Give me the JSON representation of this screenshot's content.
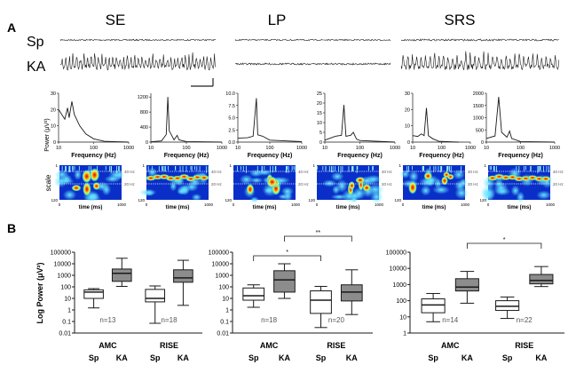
{
  "panel_a": {
    "label": "A",
    "columns": [
      "SE",
      "LP",
      "SRS"
    ],
    "rows": [
      "Sp",
      "KA"
    ],
    "spectra_ylabel": "Power (μV²)",
    "spectra_xlabel": "Frequency (Hz)",
    "wavelet_ylabel": "scale",
    "wavelet_xlabel": "time (ms)",
    "wavelet_xticks": [
      "0",
      "1000"
    ],
    "wavelet_yticks": [
      "1",
      "120"
    ],
    "wavelet_lines": [
      "40 Hz",
      "20 Hz"
    ]
  },
  "panel_b": {
    "label": "B",
    "ylabel": "Log Power (μV²)",
    "groups": [
      "AMC",
      "RISE"
    ],
    "conditions": [
      "Sp",
      "KA"
    ]
  },
  "colors": {
    "box_sp": "#ffffff",
    "box_ka": "#8c8c8c",
    "line": "#1a1a1a"
  },
  "chart_data": [
    {
      "type": "line",
      "column": "SE",
      "row": "Sp",
      "xscale": "log",
      "xlim": [
        10,
        1000
      ],
      "xticks": [
        "10",
        "100",
        "1000"
      ],
      "ylim": [
        0,
        30
      ],
      "yticks": [
        "0",
        "10",
        "20",
        "30"
      ],
      "x": [
        10,
        15,
        18,
        20,
        24,
        28,
        40,
        60,
        100,
        200,
        1000
      ],
      "y": [
        20,
        14,
        21,
        15,
        25,
        17,
        10,
        5,
        2,
        0.5,
        0
      ]
    },
    {
      "type": "line",
      "column": "SE",
      "row": "KA",
      "xscale": "log",
      "xlim": [
        10,
        1000
      ],
      "xticks": [
        "10",
        "100",
        "1000"
      ],
      "ylim": [
        0,
        1300
      ],
      "yticks": [
        "0",
        "400",
        "800",
        "1200"
      ],
      "x": [
        10,
        20,
        27,
        30,
        33,
        45,
        55,
        62,
        100,
        1000
      ],
      "y": [
        10,
        30,
        200,
        1200,
        300,
        60,
        180,
        60,
        15,
        0
      ]
    },
    {
      "type": "line",
      "column": "LP",
      "row": "Sp",
      "xscale": "log",
      "xlim": [
        10,
        1000
      ],
      "xticks": [
        "10",
        "100",
        "1000"
      ],
      "ylim": [
        0,
        10
      ],
      "yticks": [
        "0.0",
        "2.5",
        "5.0",
        "7.5",
        "10.0"
      ],
      "x": [
        10,
        20,
        30,
        38,
        42,
        60,
        100,
        1000
      ],
      "y": [
        0.8,
        0.9,
        1.2,
        9,
        1.5,
        1.2,
        0.4,
        0.1
      ]
    },
    {
      "type": "line",
      "column": "LP",
      "row": "KA",
      "xscale": "log",
      "xlim": [
        10,
        1000
      ],
      "xticks": [
        "10",
        "100",
        "1000"
      ],
      "ylim": [
        0,
        25
      ],
      "yticks": [
        "0",
        "5",
        "10",
        "15",
        "20",
        "25"
      ],
      "x": [
        10,
        20,
        30,
        35,
        40,
        55,
        65,
        80,
        100,
        1000
      ],
      "y": [
        1,
        3,
        3.5,
        19,
        3,
        3.5,
        5,
        1.5,
        0.8,
        0
      ]
    },
    {
      "type": "line",
      "column": "SRS",
      "row": "Sp",
      "xscale": "log",
      "xlim": [
        10,
        1000
      ],
      "xticks": [
        "10",
        "100",
        "1000"
      ],
      "ylim": [
        0,
        30
      ],
      "yticks": [
        "0",
        "10",
        "20",
        "30"
      ],
      "x": [
        10,
        15,
        20,
        25,
        30,
        35,
        50,
        80,
        400
      ],
      "y": [
        4,
        3.5,
        5,
        4,
        21,
        4,
        2,
        0.5,
        0
      ]
    },
    {
      "type": "line",
      "column": "SRS",
      "row": "KA",
      "xscale": "log",
      "xlim": [
        10,
        1000
      ],
      "xticks": [
        "10",
        "100",
        "1000"
      ],
      "ylim": [
        0,
        2000
      ],
      "yticks": [
        "0",
        "500",
        "1000",
        "1500",
        "2000"
      ],
      "x": [
        10,
        18,
        23,
        28,
        40,
        48,
        55,
        100,
        1000
      ],
      "y": [
        150,
        250,
        1850,
        400,
        200,
        450,
        150,
        20,
        0
      ]
    },
    {
      "type": "box",
      "yscale": "log",
      "ylim": [
        0.01,
        100000
      ],
      "yticks": [
        "0.01",
        "0.1",
        "1",
        "10",
        "100",
        "1000",
        "10000",
        "100000"
      ],
      "boxes": [
        {
          "group": "AMC",
          "cond": "Sp",
          "min": 1.5,
          "q1": 10,
          "median": 35,
          "q3": 55,
          "max": 70
        },
        {
          "group": "AMC",
          "cond": "KA",
          "min": 110,
          "q1": 300,
          "median": 1500,
          "q3": 3500,
          "max": 30000
        },
        {
          "group": "RISE",
          "cond": "Sp",
          "min": 0.07,
          "q1": 5,
          "median": 10,
          "q3": 60,
          "max": 120
        },
        {
          "group": "RISE",
          "cond": "KA",
          "min": 2.5,
          "q1": 250,
          "median": 600,
          "q3": 3000,
          "max": 20000
        }
      ],
      "n": [
        "n=13",
        "n=18"
      ],
      "brackets": []
    },
    {
      "type": "box",
      "yscale": "log",
      "ylim": [
        0.01,
        100000
      ],
      "yticks": [
        "0.01",
        "0.1",
        "1",
        "10",
        "100",
        "1000",
        "10000",
        "100000"
      ],
      "boxes": [
        {
          "group": "AMC",
          "cond": "Sp",
          "min": 1.7,
          "q1": 7,
          "median": 17,
          "q3": 80,
          "max": 150
        },
        {
          "group": "AMC",
          "cond": "KA",
          "min": 10,
          "q1": 35,
          "median": 400,
          "q3": 2500,
          "max": 10000
        },
        {
          "group": "RISE",
          "cond": "Sp",
          "min": 0.03,
          "q1": 0.5,
          "median": 7,
          "q3": 45,
          "max": 110
        },
        {
          "group": "RISE",
          "cond": "KA",
          "min": 0.4,
          "q1": 6,
          "median": 35,
          "q3": 150,
          "max": 3000
        }
      ],
      "n": [
        "n=18",
        "n=20"
      ],
      "brackets": [
        {
          "from": 0,
          "to": 2,
          "label": "*"
        },
        {
          "from": 1,
          "to": 3,
          "label": "**"
        }
      ]
    },
    {
      "type": "box",
      "yscale": "log",
      "ylim": [
        1,
        100000
      ],
      "yticks": [
        "1",
        "10",
        "100",
        "1000",
        "10000",
        "100000"
      ],
      "boxes": [
        {
          "group": "AMC",
          "cond": "Sp",
          "min": 5,
          "q1": 18,
          "median": 55,
          "q3": 130,
          "max": 280
        },
        {
          "group": "AMC",
          "cond": "KA",
          "min": 70,
          "q1": 400,
          "median": 700,
          "q3": 2300,
          "max": 6500
        },
        {
          "group": "RISE",
          "cond": "Sp",
          "min": 8,
          "q1": 25,
          "median": 45,
          "q3": 100,
          "max": 170
        },
        {
          "group": "RISE",
          "cond": "KA",
          "min": 750,
          "q1": 1100,
          "median": 1800,
          "q3": 4200,
          "max": 13000
        }
      ],
      "n": [
        "n=14",
        "n=22"
      ],
      "brackets": [
        {
          "from": 1,
          "to": 3,
          "label": "*"
        }
      ]
    }
  ]
}
